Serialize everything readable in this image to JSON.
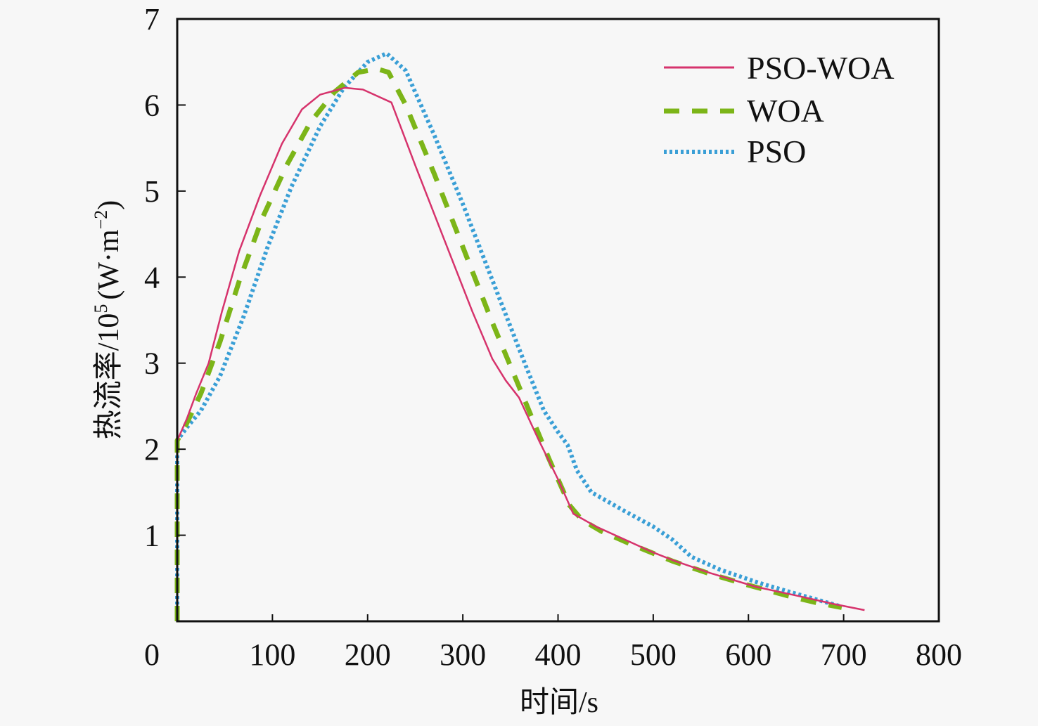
{
  "chart_data": {
    "type": "line",
    "title": "",
    "xlabel": "时间/s",
    "ylabel_parts": {
      "main": "热流率/10",
      "sup1": "5",
      "unit": "(W·m",
      "sup2": "−2",
      "close": ")"
    },
    "ylabel": "热流率/10⁵ (W·m⁻²)",
    "xlim": [
      0,
      800
    ],
    "ylim": [
      0,
      7
    ],
    "xticks": [
      0,
      100,
      200,
      300,
      400,
      500,
      600,
      700,
      800
    ],
    "xtick_labels": [
      "0",
      "100",
      "200",
      "300",
      "400",
      "500",
      "600",
      "700",
      "800"
    ],
    "yticks": [
      1,
      2,
      3,
      4,
      5,
      6,
      7
    ],
    "ytick_labels": [
      "1",
      "2",
      "3",
      "4",
      "5",
      "6",
      "7"
    ],
    "grid": false,
    "legend_position": "top-right",
    "series": [
      {
        "name": "PSO-WOA",
        "style": "solid",
        "color": "#d6336c",
        "x": [
          0,
          0,
          10,
          20,
          33,
          47,
          65,
          87,
          110,
          131,
          150,
          176,
          195,
          225,
          250,
          280,
          310,
          331,
          345,
          359,
          380,
          400,
          416,
          440,
          470,
          500,
          523,
          560,
          608,
          650,
          690,
          722
        ],
        "y": [
          0,
          2.1,
          2.35,
          2.65,
          3.0,
          3.6,
          4.3,
          4.95,
          5.55,
          5.95,
          6.12,
          6.2,
          6.18,
          6.03,
          5.3,
          4.45,
          3.6,
          3.05,
          2.8,
          2.6,
          2.1,
          1.65,
          1.25,
          1.1,
          0.95,
          0.8,
          0.7,
          0.56,
          0.4,
          0.3,
          0.2,
          0.13
        ]
      },
      {
        "name": "WOA",
        "style": "dashed",
        "color": "#7cb518",
        "x": [
          0,
          0,
          10,
          25,
          45,
          65,
          90,
          115,
          140,
          165,
          190,
          210,
          222,
          240,
          270,
          300,
          330,
          360,
          390,
          412,
          425,
          445,
          480,
          520,
          560,
          600,
          640,
          670,
          698
        ],
        "y": [
          0,
          2.1,
          2.3,
          2.65,
          3.25,
          3.95,
          4.7,
          5.3,
          5.8,
          6.15,
          6.38,
          6.42,
          6.38,
          6.0,
          5.2,
          4.35,
          3.5,
          2.7,
          1.9,
          1.35,
          1.18,
          1.05,
          0.88,
          0.7,
          0.55,
          0.42,
          0.3,
          0.22,
          0.16
        ]
      },
      {
        "name": "PSO",
        "style": "dotted",
        "color": "#3a9fd6",
        "x": [
          0,
          0,
          10,
          25,
          45,
          70,
          95,
          120,
          150,
          175,
          200,
          220,
          240,
          270,
          300,
          335,
          365,
          385,
          400,
          410,
          420,
          435,
          470,
          500,
          520,
          540,
          570,
          610,
          650,
          698
        ],
        "y": [
          0,
          2.1,
          2.25,
          2.45,
          2.85,
          3.55,
          4.35,
          5.05,
          5.75,
          6.2,
          6.5,
          6.6,
          6.4,
          5.65,
          4.85,
          3.85,
          3.0,
          2.45,
          2.2,
          2.05,
          1.75,
          1.5,
          1.28,
          1.1,
          0.95,
          0.75,
          0.6,
          0.45,
          0.32,
          0.17
        ]
      }
    ]
  }
}
